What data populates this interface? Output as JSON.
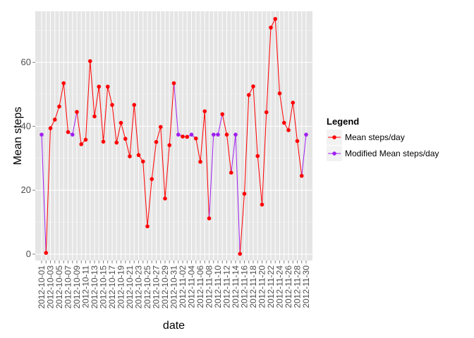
{
  "chart_data": {
    "type": "line",
    "title": "",
    "xlabel": "date",
    "ylabel": "Mean steps",
    "ylim": [
      -2,
      76
    ],
    "y_ticks": [
      0,
      20,
      40,
      60
    ],
    "grid": true,
    "legend": {
      "title": "Legend",
      "placement": "right"
    },
    "x": [
      "2012-10-01",
      "2012-10-02",
      "2012-10-03",
      "2012-10-04",
      "2012-10-05",
      "2012-10-06",
      "2012-10-07",
      "2012-10-08",
      "2012-10-09",
      "2012-10-10",
      "2012-10-11",
      "2012-10-12",
      "2012-10-13",
      "2012-10-14",
      "2012-10-15",
      "2012-10-16",
      "2012-10-17",
      "2012-10-18",
      "2012-10-19",
      "2012-10-20",
      "2012-10-21",
      "2012-10-22",
      "2012-10-23",
      "2012-10-24",
      "2012-10-25",
      "2012-10-26",
      "2012-10-27",
      "2012-10-28",
      "2012-10-29",
      "2012-10-30",
      "2012-10-31",
      "2012-11-01",
      "2012-11-02",
      "2012-11-03",
      "2012-11-04",
      "2012-11-05",
      "2012-11-06",
      "2012-11-07",
      "2012-11-08",
      "2012-11-09",
      "2012-11-10",
      "2012-11-11",
      "2012-11-12",
      "2012-11-13",
      "2012-11-14",
      "2012-11-15",
      "2012-11-16",
      "2012-11-17",
      "2012-11-18",
      "2012-11-19",
      "2012-11-20",
      "2012-11-21",
      "2012-11-22",
      "2012-11-23",
      "2012-11-24",
      "2012-11-25",
      "2012-11-26",
      "2012-11-27",
      "2012-11-28",
      "2012-11-29",
      "2012-11-30"
    ],
    "x_tick_labels": [
      "2012-10-01",
      "2012-10-03",
      "2012-10-05",
      "2012-10-07",
      "2012-10-09",
      "2012-10-11",
      "2012-10-13",
      "2012-10-15",
      "2012-10-17",
      "2012-10-19",
      "2012-10-21",
      "2012-10-23",
      "2012-10-25",
      "2012-10-27",
      "2012-10-29",
      "2012-10-31",
      "2012-11-02",
      "2012-11-04",
      "2012-11-06",
      "2012-11-08",
      "2012-11-10",
      "2012-11-12",
      "2012-11-14",
      "2012-11-16",
      "2012-11-18",
      "2012-11-20",
      "2012-11-22",
      "2012-11-24",
      "2012-11-26",
      "2012-11-28",
      "2012-11-30"
    ],
    "series": [
      {
        "name": "Mean steps/day",
        "color": "#ff0000",
        "values": [
          37.4,
          0.4,
          39.4,
          42.1,
          46.2,
          53.5,
          38.2,
          37.4,
          44.5,
          34.4,
          35.8,
          60.4,
          43.1,
          52.4,
          35.2,
          52.4,
          46.7,
          34.9,
          41.1,
          36.1,
          30.6,
          46.7,
          31.0,
          29.0,
          8.7,
          23.5,
          35.1,
          39.8,
          17.4,
          34.1,
          53.5,
          37.4,
          36.8,
          36.7,
          37.4,
          36.2,
          28.9,
          44.7,
          11.2,
          37.4,
          37.4,
          43.8,
          37.4,
          25.5,
          37.4,
          0.1,
          18.9,
          49.8,
          52.5,
          30.7,
          15.5,
          44.4,
          70.9,
          73.6,
          50.3,
          41.1,
          38.8,
          47.4,
          35.4,
          24.5,
          37.4
        ]
      },
      {
        "name": "Modified Mean steps/day",
        "color": "#a020f0",
        "imputed_dates": [
          "2012-10-01",
          "2012-10-08",
          "2012-11-01",
          "2012-11-04",
          "2012-11-09",
          "2012-11-10",
          "2012-11-14",
          "2012-11-30"
        ]
      }
    ]
  }
}
